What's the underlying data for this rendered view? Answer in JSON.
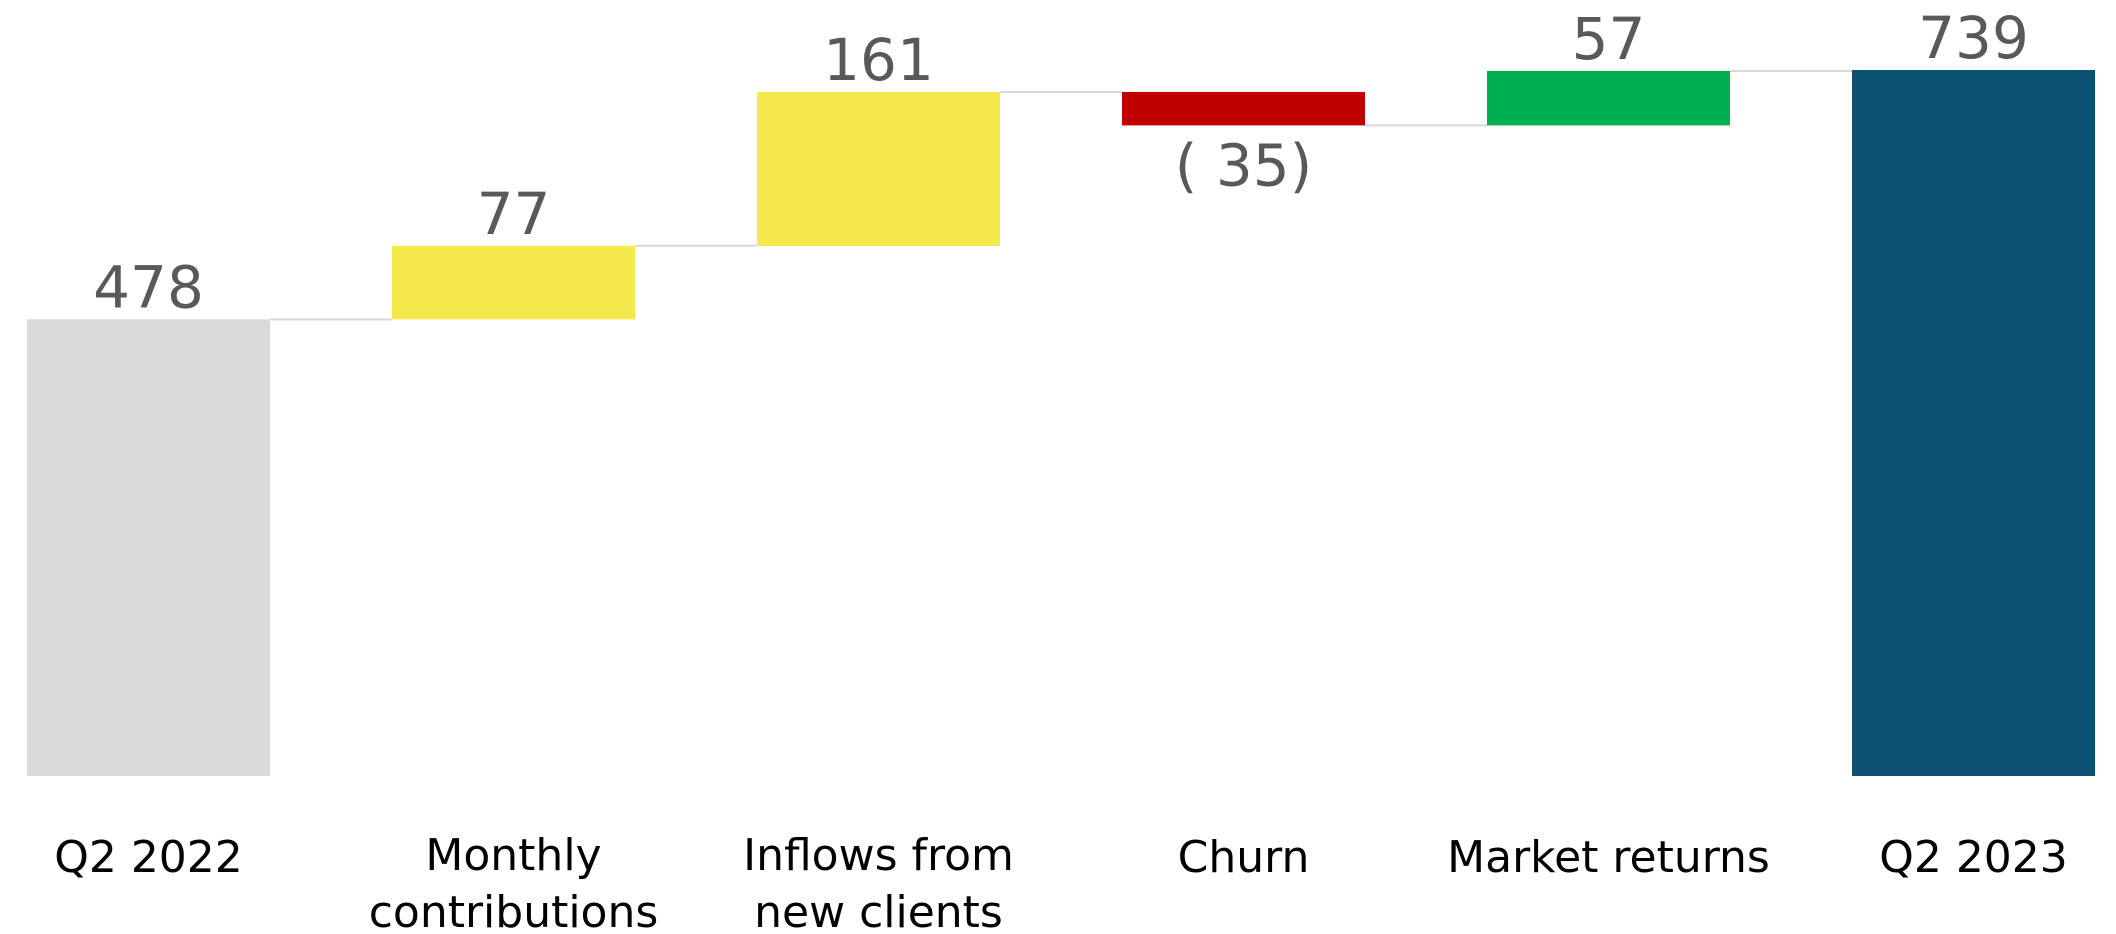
{
  "chart_data": {
    "type": "bar",
    "subtype": "waterfall",
    "title": "",
    "xlabel": "",
    "ylabel": "",
    "ylim": [
      0,
      760
    ],
    "grid": false,
    "legend": "none",
    "categories": [
      [
        "Q2 2022"
      ],
      [
        "Monthly",
        "contributions"
      ],
      [
        "Inflows from",
        "new clients"
      ],
      [
        "Churn"
      ],
      [
        "Market returns"
      ],
      [
        "Q2 2023"
      ]
    ],
    "values": [
      478,
      77,
      161,
      -35,
      57,
      739
    ],
    "value_labels": [
      "478",
      "77",
      "161",
      "( 35)",
      "57",
      "739"
    ],
    "kinds": [
      "total",
      "delta",
      "delta",
      "delta",
      "delta",
      "total"
    ],
    "colors": [
      "#d9d9d9",
      "#f5e84b",
      "#f5e84b",
      "#c00000",
      "#00b050",
      "#0b5270"
    ],
    "connector_color": "#d9d9d9"
  }
}
